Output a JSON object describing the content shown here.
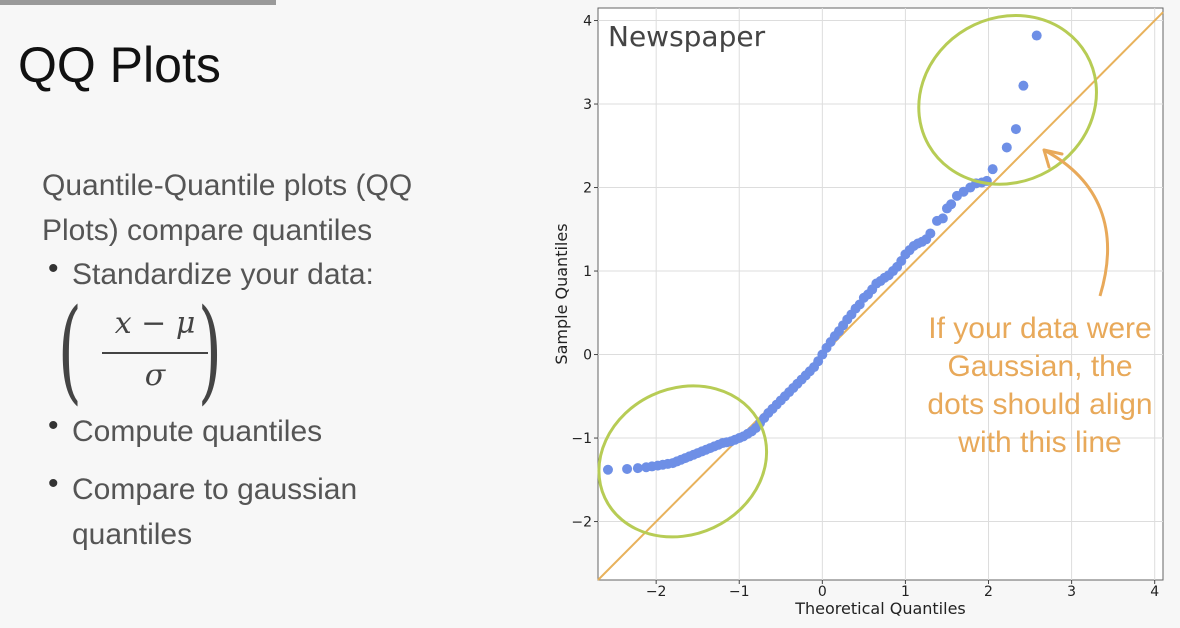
{
  "slide": {
    "title": "QQ Plots",
    "intro": "Quantile-Quantile plots (QQ Plots) compare quantiles",
    "bullets": [
      "Standardize your data:",
      "Compute quantiles",
      "Compare to gaussian",
      "quantiles"
    ],
    "formula": {
      "numerator": "x − μ",
      "denominator": "σ"
    }
  },
  "chart_data": {
    "type": "scatter",
    "title": "Newspaper",
    "xlabel": "Theoretical Quantiles",
    "ylabel": "Sample Quantiles",
    "xlim": [
      -2.7,
      4.1
    ],
    "ylim": [
      -2.7,
      4.15
    ],
    "xticks": [
      -2,
      -1,
      0,
      1,
      2,
      3,
      4
    ],
    "yticks": [
      -2,
      -1,
      0,
      1,
      2,
      3,
      4
    ],
    "tick_labels_x": [
      "−2",
      "−1",
      "0",
      "1",
      "2",
      "3",
      "4"
    ],
    "tick_labels_y": [
      "−2",
      "−1",
      "0",
      "1",
      "2",
      "3",
      "4"
    ],
    "grid": true,
    "reference_line": {
      "slope": 1,
      "intercept": 0,
      "color": "#e8b25c"
    },
    "point_color": "#6e8fe6",
    "annotation": {
      "lines": [
        "If your data were",
        "Gaussian, the",
        "dots should align",
        "with this line"
      ],
      "color": "#e8a95a"
    },
    "highlight_color": "#b7cc55",
    "x": [
      -2.58,
      -2.35,
      -2.22,
      -2.12,
      -2.05,
      -1.98,
      -1.92,
      -1.86,
      -1.8,
      -1.75,
      -1.7,
      -1.65,
      -1.6,
      -1.55,
      -1.5,
      -1.45,
      -1.4,
      -1.35,
      -1.3,
      -1.25,
      -1.2,
      -1.15,
      -1.1,
      -1.05,
      -1.0,
      -0.95,
      -0.9,
      -0.85,
      -0.8,
      -0.75,
      -0.7,
      -0.65,
      -0.6,
      -0.55,
      -0.5,
      -0.45,
      -0.4,
      -0.35,
      -0.3,
      -0.25,
      -0.2,
      -0.15,
      -0.1,
      -0.05,
      0.0,
      0.05,
      0.1,
      0.15,
      0.2,
      0.25,
      0.3,
      0.35,
      0.4,
      0.45,
      0.5,
      0.55,
      0.6,
      0.65,
      0.7,
      0.75,
      0.8,
      0.85,
      0.9,
      0.95,
      1.0,
      1.05,
      1.1,
      1.15,
      1.2,
      1.25,
      1.3,
      1.38,
      1.45,
      1.5,
      1.55,
      1.62,
      1.7,
      1.78,
      1.85,
      1.92,
      1.98,
      2.05,
      2.22,
      2.33,
      2.42,
      2.58
    ],
    "y": [
      -1.38,
      -1.37,
      -1.36,
      -1.35,
      -1.34,
      -1.33,
      -1.32,
      -1.31,
      -1.3,
      -1.28,
      -1.26,
      -1.24,
      -1.22,
      -1.2,
      -1.18,
      -1.16,
      -1.14,
      -1.12,
      -1.1,
      -1.08,
      -1.06,
      -1.05,
      -1.04,
      -1.02,
      -1.0,
      -0.98,
      -0.95,
      -0.92,
      -0.88,
      -0.82,
      -0.76,
      -0.7,
      -0.65,
      -0.6,
      -0.55,
      -0.5,
      -0.45,
      -0.4,
      -0.35,
      -0.3,
      -0.25,
      -0.2,
      -0.15,
      -0.08,
      0.0,
      0.08,
      0.15,
      0.22,
      0.28,
      0.35,
      0.42,
      0.48,
      0.55,
      0.6,
      0.68,
      0.72,
      0.78,
      0.85,
      0.88,
      0.92,
      0.95,
      1.0,
      1.05,
      1.12,
      1.2,
      1.25,
      1.3,
      1.33,
      1.35,
      1.38,
      1.45,
      1.6,
      1.63,
      1.75,
      1.8,
      1.9,
      1.95,
      2.0,
      2.05,
      2.06,
      2.08,
      2.22,
      2.48,
      2.7,
      3.22,
      3.82
    ]
  }
}
